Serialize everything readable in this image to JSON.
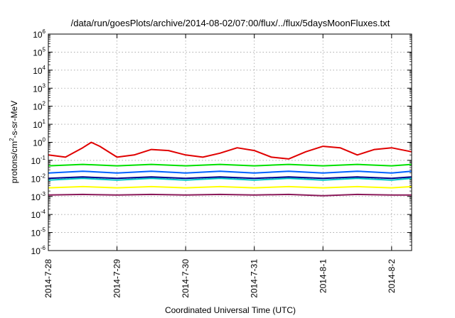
{
  "chart_data": {
    "type": "line",
    "title": "/data/run/goesPlots/archive/2014-08-02/07:00/flux/../flux/5daysMoonFluxes.txt",
    "xlabel": "Coordinated Universal Time (UTC)",
    "ylabel": "protons/cm2-s-sr-MeV",
    "ylabel_parts": {
      "pre": "protons/cm",
      "sup": "2",
      "post": "-s-sr-MeV"
    },
    "y_scale": "log",
    "ylim": [
      1e-06,
      1000000.0
    ],
    "y_ticks": [
      {
        "value": 1e-06,
        "base": "10",
        "exp": "-6"
      },
      {
        "value": 1e-05,
        "base": "10",
        "exp": "-5"
      },
      {
        "value": 0.0001,
        "base": "10",
        "exp": "-4"
      },
      {
        "value": 0.001,
        "base": "10",
        "exp": "-3"
      },
      {
        "value": 0.01,
        "base": "10",
        "exp": "-2"
      },
      {
        "value": 0.1,
        "base": "10",
        "exp": "-1"
      },
      {
        "value": 1,
        "base": "10",
        "exp": "0"
      },
      {
        "value": 10.0,
        "base": "10",
        "exp": "1"
      },
      {
        "value": 100.0,
        "base": "10",
        "exp": "2"
      },
      {
        "value": 1000.0,
        "base": "10",
        "exp": "3"
      },
      {
        "value": 10000.0,
        "base": "10",
        "exp": "4"
      },
      {
        "value": 100000.0,
        "base": "10",
        "exp": "5"
      },
      {
        "value": 1000000.0,
        "base": "10",
        "exp": "6"
      }
    ],
    "xlim": [
      "2014-07-28 00:00",
      "2014-08-02 07:00"
    ],
    "x_ticks": [
      "2014-7-28",
      "2014-7-29",
      "2014-7-30",
      "2014-7-31",
      "2014-8-1",
      "2014-8-2"
    ],
    "grid": true,
    "series": [
      {
        "color": "#e00000",
        "x": [
          "2014-07-28 00:00",
          "2014-07-28 06:00",
          "2014-07-28 12:00",
          "2014-07-28 15:00",
          "2014-07-28 18:00",
          "2014-07-29 00:00",
          "2014-07-29 06:00",
          "2014-07-29 12:00",
          "2014-07-29 18:00",
          "2014-07-30 00:00",
          "2014-07-30 06:00",
          "2014-07-30 12:00",
          "2014-07-30 18:00",
          "2014-07-31 00:00",
          "2014-07-31 06:00",
          "2014-07-31 12:00",
          "2014-07-31 18:00",
          "2014-08-01 00:00",
          "2014-08-01 06:00",
          "2014-08-01 12:00",
          "2014-08-01 18:00",
          "2014-08-02 00:00",
          "2014-08-02 07:00"
        ],
        "values": [
          0.2,
          0.15,
          0.5,
          1.0,
          0.6,
          0.15,
          0.2,
          0.4,
          0.35,
          0.2,
          0.15,
          0.25,
          0.5,
          0.35,
          0.15,
          0.12,
          0.3,
          0.6,
          0.5,
          0.2,
          0.4,
          0.5,
          0.3
        ]
      },
      {
        "color": "#00e000",
        "x": [
          "2014-07-28 00:00",
          "2014-07-28 12:00",
          "2014-07-29 00:00",
          "2014-07-29 12:00",
          "2014-07-30 00:00",
          "2014-07-30 12:00",
          "2014-07-31 00:00",
          "2014-07-31 12:00",
          "2014-08-01 00:00",
          "2014-08-01 12:00",
          "2014-08-02 00:00",
          "2014-08-02 07:00"
        ],
        "values": [
          0.05,
          0.06,
          0.05,
          0.06,
          0.05,
          0.06,
          0.05,
          0.06,
          0.05,
          0.06,
          0.05,
          0.06
        ]
      },
      {
        "color": "#00c8c8",
        "x": [
          "2014-07-28 00:00",
          "2014-07-28 12:00",
          "2014-07-29 00:00",
          "2014-07-29 12:00",
          "2014-07-30 00:00",
          "2014-07-30 12:00",
          "2014-07-31 00:00",
          "2014-07-31 12:00",
          "2014-08-01 00:00",
          "2014-08-01 12:00",
          "2014-08-02 00:00",
          "2014-08-02 07:00"
        ],
        "values": [
          0.008,
          0.01,
          0.008,
          0.01,
          0.008,
          0.01,
          0.008,
          0.01,
          0.008,
          0.01,
          0.008,
          0.01
        ]
      },
      {
        "color": "#0060ff",
        "x": [
          "2014-07-28 00:00",
          "2014-07-28 12:00",
          "2014-07-29 00:00",
          "2014-07-29 12:00",
          "2014-07-30 00:00",
          "2014-07-30 12:00",
          "2014-07-31 00:00",
          "2014-07-31 12:00",
          "2014-08-01 00:00",
          "2014-08-01 12:00",
          "2014-08-02 00:00",
          "2014-08-02 07:00"
        ],
        "values": [
          0.02,
          0.025,
          0.02,
          0.025,
          0.02,
          0.025,
          0.02,
          0.025,
          0.02,
          0.025,
          0.02,
          0.025
        ]
      },
      {
        "color": "#000090",
        "x": [
          "2014-07-28 00:00",
          "2014-07-28 12:00",
          "2014-07-29 00:00",
          "2014-07-29 12:00",
          "2014-07-30 00:00",
          "2014-07-30 12:00",
          "2014-07-31 00:00",
          "2014-07-31 12:00",
          "2014-08-01 00:00",
          "2014-08-01 12:00",
          "2014-08-02 00:00",
          "2014-08-02 07:00"
        ],
        "values": [
          0.01,
          0.012,
          0.01,
          0.012,
          0.01,
          0.012,
          0.01,
          0.012,
          0.01,
          0.012,
          0.01,
          0.012
        ]
      },
      {
        "color": "#ffff00",
        "x": [
          "2014-07-28 00:00",
          "2014-07-28 12:00",
          "2014-07-29 00:00",
          "2014-07-29 12:00",
          "2014-07-30 00:00",
          "2014-07-30 12:00",
          "2014-07-31 00:00",
          "2014-07-31 12:00",
          "2014-08-01 00:00",
          "2014-08-01 12:00",
          "2014-08-02 00:00",
          "2014-08-02 07:00"
        ],
        "values": [
          0.003,
          0.0035,
          0.003,
          0.0035,
          0.003,
          0.0035,
          0.003,
          0.0035,
          0.003,
          0.0035,
          0.003,
          0.0035
        ]
      },
      {
        "color": "#8b1a5a",
        "x": [
          "2014-07-28 00:00",
          "2014-07-28 12:00",
          "2014-07-29 00:00",
          "2014-07-29 12:00",
          "2014-07-30 00:00",
          "2014-07-30 12:00",
          "2014-07-31 00:00",
          "2014-07-31 12:00",
          "2014-08-01 00:00",
          "2014-08-01 12:00",
          "2014-08-02 00:00",
          "2014-08-02 07:00"
        ],
        "values": [
          0.0012,
          0.0013,
          0.0012,
          0.0013,
          0.0012,
          0.0013,
          0.0012,
          0.0013,
          0.0011,
          0.0013,
          0.0012,
          0.0012
        ]
      }
    ]
  }
}
